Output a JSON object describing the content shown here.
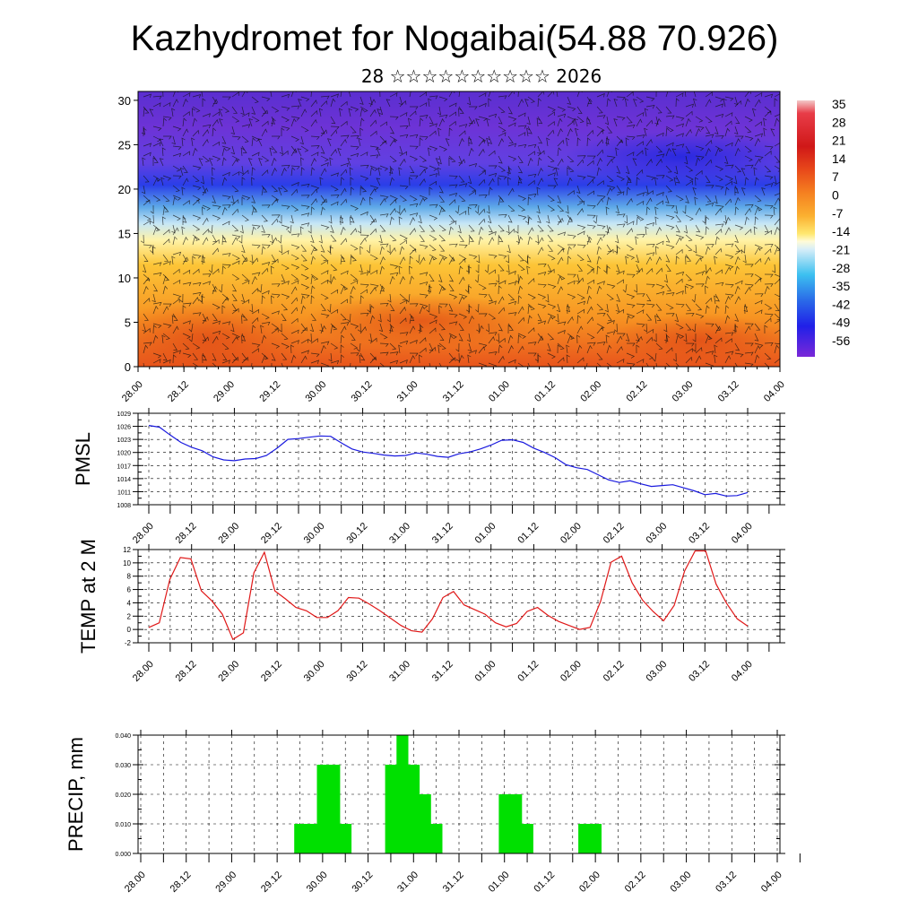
{
  "title": "Kazhydromet for Nogaibai(54.88 70.926)",
  "subtitle": "28 ☆☆☆☆☆☆☆☆☆☆ 2026",
  "time_labels": [
    "28.00",
    "28.12",
    "29.00",
    "29.12",
    "30.00",
    "30.12",
    "31.00",
    "31.12",
    "01.00",
    "01.12",
    "02.00",
    "02.12",
    "03.00",
    "03.12",
    "04.00"
  ],
  "colors": {
    "pmsl_line": "#1a1adf",
    "temp_line": "#e01818",
    "precip_bar": "#00e000",
    "grid": "#000000"
  },
  "chart_data": [
    {
      "type": "heatmap",
      "name": "temperature-wind-profile",
      "x_ticks": [
        "28.00",
        "28.12",
        "29.00",
        "29.12",
        "30.00",
        "30.12",
        "31.00",
        "31.12",
        "01.00",
        "01.12",
        "02.00",
        "02.12",
        "03.00",
        "03.12",
        "04.00"
      ],
      "y_ticks": [
        "0",
        "5",
        "10",
        "15",
        "20",
        "25",
        "30"
      ],
      "ylim": [
        0,
        31
      ],
      "colorbar_labels": [
        "35",
        "28",
        "21",
        "14",
        "7",
        "0",
        "-7",
        "-14",
        "-21",
        "-28",
        "-35",
        "-42",
        "-49",
        "-56"
      ],
      "overlay": "wind barbs"
    },
    {
      "type": "line",
      "name": "pmsl",
      "ylabel": "PMSL",
      "y_ticks": [
        "1029",
        "1026",
        "1023",
        "1020",
        "1017",
        "1014",
        "1011",
        "1008"
      ],
      "ylim": [
        1008,
        1029
      ],
      "x_ticks": [
        "28.00",
        "28.12",
        "29.00",
        "29.12",
        "30.00",
        "30.12",
        "31.00",
        "31.12",
        "01.00",
        "01.12",
        "02.00",
        "02.12",
        "03.00",
        "03.12",
        "04.00"
      ],
      "step_hours": 3,
      "values": [
        1026.2,
        1025.8,
        1024.0,
        1022.3,
        1021.2,
        1020.4,
        1019.0,
        1018.3,
        1018.1,
        1018.5,
        1018.6,
        1019.3,
        1021.0,
        1023.0,
        1023.2,
        1023.5,
        1023.8,
        1023.7,
        1022.2,
        1020.8,
        1020.1,
        1019.8,
        1019.4,
        1019.2,
        1019.3,
        1019.9,
        1019.6,
        1019.1,
        1018.9,
        1019.7,
        1020.1,
        1020.8,
        1021.7,
        1022.8,
        1022.9,
        1022.3,
        1021.0,
        1020.0,
        1018.8,
        1017.2,
        1016.5,
        1016.1,
        1014.9,
        1013.7,
        1013.1,
        1013.5,
        1012.8,
        1012.2,
        1012.4,
        1012.6,
        1011.9,
        1011.2,
        1010.3,
        1010.6,
        1010.0,
        1010.1,
        1010.8
      ]
    },
    {
      "type": "line",
      "name": "temp-2m",
      "ylabel": "TEMP at 2 M",
      "y_ticks": [
        "12",
        "10",
        "8",
        "6",
        "4",
        "2",
        "0",
        "-2"
      ],
      "ylim": [
        -2,
        12
      ],
      "x_ticks": [
        "28.00",
        "28.12",
        "29.00",
        "29.12",
        "30.00",
        "30.12",
        "31.00",
        "31.12",
        "01.00",
        "01.12",
        "02.00",
        "02.12",
        "03.00",
        "03.12",
        "04.00"
      ],
      "step_hours": 4.5,
      "values": [
        0.3,
        1.0,
        7.5,
        10.8,
        10.6,
        5.8,
        4.3,
        2.3,
        -1.5,
        -0.5,
        8.5,
        11.6,
        5.8,
        4.6,
        3.3,
        2.8,
        1.8,
        1.8,
        2.8,
        4.8,
        4.7,
        3.8,
        2.8,
        1.7,
        0.6,
        -0.2,
        -0.4,
        1.6,
        4.8,
        5.7,
        3.7,
        3.0,
        2.3,
        1.0,
        0.4,
        0.9,
        2.7,
        3.3,
        2.1,
        1.2,
        0.6,
        0.0,
        0.3,
        4.2,
        10.1,
        11.0,
        7.0,
        4.4,
        2.7,
        1.3,
        3.6,
        8.8,
        11.8,
        11.8,
        6.8,
        3.9,
        1.6,
        0.5
      ]
    },
    {
      "type": "bar",
      "name": "precip",
      "ylabel": "PRECIP, mm",
      "y_ticks": [
        "0.040",
        "0.030",
        "0.020",
        "0.010",
        "0.000"
      ],
      "ylim": [
        0,
        0.04
      ],
      "x_ticks": [
        "28.00",
        "28.12",
        "29.00",
        "29.12",
        "30.00",
        "30.12",
        "31.00",
        "31.12",
        "01.00",
        "01.12",
        "02.00",
        "02.12",
        "03.00",
        "03.12",
        "04.00"
      ],
      "step_hours": 3,
      "values": [
        0,
        0,
        0,
        0,
        0,
        0,
        0,
        0,
        0,
        0,
        0,
        0,
        0,
        0,
        0.01,
        0.01,
        0.03,
        0.03,
        0.01,
        0,
        0,
        0,
        0.03,
        0.04,
        0.03,
        0.02,
        0.01,
        0,
        0,
        0,
        0,
        0,
        0.02,
        0.02,
        0.01,
        0,
        0,
        0,
        0,
        0.01,
        0.01,
        0,
        0,
        0,
        0,
        0,
        0,
        0,
        0,
        0,
        0,
        0,
        0,
        0,
        0,
        0,
        0
      ]
    }
  ]
}
